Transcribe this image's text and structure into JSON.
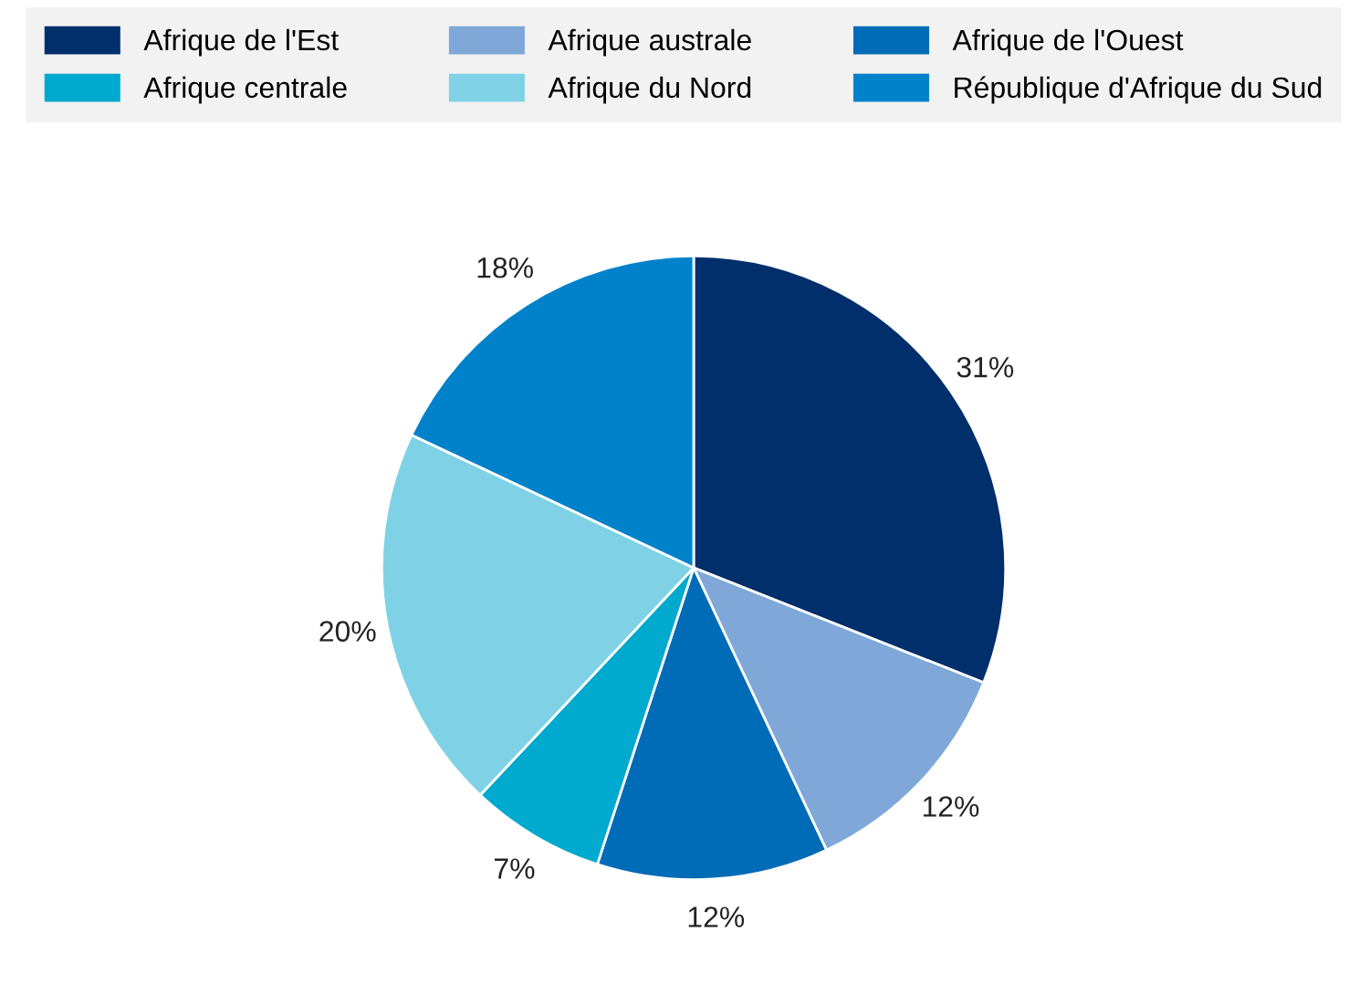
{
  "chart_data": {
    "type": "pie",
    "categories": [
      "Afrique de l'Est",
      "Afrique australe",
      "Afrique de l'Ouest",
      "Afrique centrale",
      "Afrique du Nord",
      "République d'Afrique du Sud"
    ],
    "values": [
      31,
      12,
      12,
      7,
      20,
      18
    ],
    "value_labels": [
      "31%",
      "12%",
      "12%",
      "7%",
      "20%",
      "18%"
    ],
    "colors": [
      "#002f6c",
      "#7fa8d8",
      "#006bb6",
      "#00a9ce",
      "#7fd2e5",
      "#0082cb"
    ],
    "legend": "top"
  }
}
